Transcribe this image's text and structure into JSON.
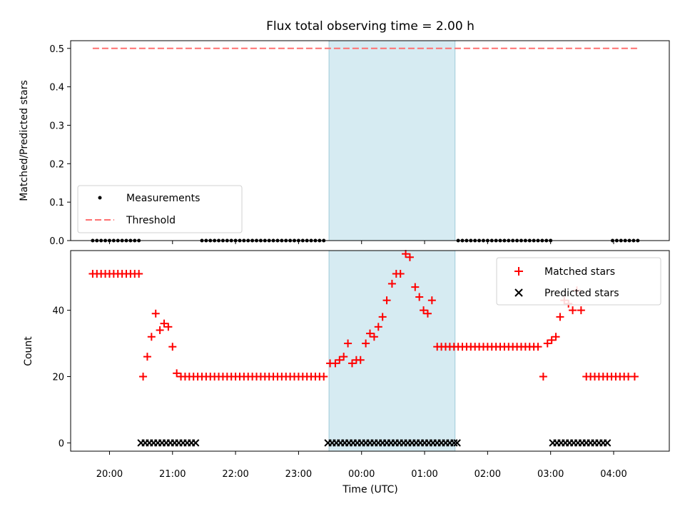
{
  "chart_data": {
    "type": "scatter",
    "title": "Flux total observing time = 2.00 h",
    "xlabel": "Time (UTC)",
    "x_ticks": [
      "20:00",
      "21:00",
      "22:00",
      "23:00",
      "00:00",
      "01:00",
      "02:00",
      "03:00",
      "04:00"
    ],
    "x_range": [
      "19:23",
      "04:53"
    ],
    "shaded_region": {
      "start": "23:29",
      "end": "01:29",
      "color": "#add8e6"
    },
    "top_panel": {
      "ylabel": "Matched/Predicted stars",
      "ylim": [
        0.0,
        0.52
      ],
      "yticks": [
        "0.0",
        "0.1",
        "0.2",
        "0.3",
        "0.4",
        "0.5"
      ],
      "threshold": {
        "name": "Threshold",
        "value": 0.5,
        "from": "19:44",
        "to": "04:24",
        "color": "#ff7070"
      },
      "measurements": {
        "name": "Measurements",
        "value": 0.0,
        "times": [
          "19:44",
          "19:48",
          "19:52",
          "19:56",
          "20:00",
          "20:04",
          "20:08",
          "20:12",
          "20:16",
          "20:20",
          "20:24",
          "20:28",
          "21:28",
          "21:32",
          "21:36",
          "21:40",
          "21:44",
          "21:48",
          "21:52",
          "21:56",
          "22:00",
          "22:04",
          "22:08",
          "22:12",
          "22:16",
          "22:20",
          "22:24",
          "22:28",
          "22:32",
          "22:36",
          "22:40",
          "22:44",
          "22:48",
          "22:52",
          "22:56",
          "23:00",
          "23:04",
          "23:08",
          "23:12",
          "23:16",
          "23:20",
          "23:24",
          "01:32",
          "01:36",
          "01:40",
          "01:44",
          "01:48",
          "01:52",
          "01:56",
          "02:00",
          "02:04",
          "02:08",
          "02:12",
          "02:16",
          "02:20",
          "02:24",
          "02:28",
          "02:32",
          "02:36",
          "02:40",
          "02:44",
          "02:48",
          "02:52",
          "02:56",
          "03:00",
          "03:59",
          "04:03",
          "04:07",
          "04:11",
          "04:15",
          "04:19",
          "04:23"
        ]
      },
      "legend": {
        "position": "lower-left",
        "entries": [
          "Measurements",
          "Threshold"
        ]
      }
    },
    "bottom_panel": {
      "ylabel": "Count",
      "ylim": [
        -2.5,
        58
      ],
      "yticks": [
        "0",
        "20",
        "40"
      ],
      "series": [
        {
          "name": "Matched stars",
          "marker": "+",
          "color": "#ff0000",
          "points": [
            [
              "19:44",
              51
            ],
            [
              "19:48",
              51
            ],
            [
              "19:52",
              51
            ],
            [
              "19:56",
              51
            ],
            [
              "20:00",
              51
            ],
            [
              "20:04",
              51
            ],
            [
              "20:08",
              51
            ],
            [
              "20:12",
              51
            ],
            [
              "20:16",
              51
            ],
            [
              "20:20",
              51
            ],
            [
              "20:24",
              51
            ],
            [
              "20:28",
              51
            ],
            [
              "20:32",
              20
            ],
            [
              "20:36",
              26
            ],
            [
              "20:40",
              32
            ],
            [
              "20:44",
              39
            ],
            [
              "20:48",
              34
            ],
            [
              "20:52",
              36
            ],
            [
              "20:56",
              35
            ],
            [
              "21:00",
              29
            ],
            [
              "21:04",
              21
            ],
            [
              "21:08",
              20
            ],
            [
              "21:12",
              20
            ],
            [
              "21:16",
              20
            ],
            [
              "21:20",
              20
            ],
            [
              "21:24",
              20
            ],
            [
              "21:28",
              20
            ],
            [
              "21:32",
              20
            ],
            [
              "21:36",
              20
            ],
            [
              "21:40",
              20
            ],
            [
              "21:44",
              20
            ],
            [
              "21:48",
              20
            ],
            [
              "21:52",
              20
            ],
            [
              "21:56",
              20
            ],
            [
              "22:00",
              20
            ],
            [
              "22:04",
              20
            ],
            [
              "22:08",
              20
            ],
            [
              "22:12",
              20
            ],
            [
              "22:16",
              20
            ],
            [
              "22:20",
              20
            ],
            [
              "22:24",
              20
            ],
            [
              "22:28",
              20
            ],
            [
              "22:32",
              20
            ],
            [
              "22:36",
              20
            ],
            [
              "22:40",
              20
            ],
            [
              "22:44",
              20
            ],
            [
              "22:48",
              20
            ],
            [
              "22:52",
              20
            ],
            [
              "22:56",
              20
            ],
            [
              "23:00",
              20
            ],
            [
              "23:04",
              20
            ],
            [
              "23:08",
              20
            ],
            [
              "23:12",
              20
            ],
            [
              "23:16",
              20
            ],
            [
              "23:20",
              20
            ],
            [
              "23:24",
              20
            ],
            [
              "23:30",
              24
            ],
            [
              "23:35",
              24
            ],
            [
              "23:39",
              25
            ],
            [
              "23:43",
              26
            ],
            [
              "23:47",
              30
            ],
            [
              "23:51",
              24
            ],
            [
              "23:55",
              25
            ],
            [
              "23:59",
              25
            ],
            [
              "00:04",
              30
            ],
            [
              "00:08",
              33
            ],
            [
              "00:12",
              32
            ],
            [
              "00:16",
              35
            ],
            [
              "00:20",
              38
            ],
            [
              "00:24",
              43
            ],
            [
              "00:29",
              48
            ],
            [
              "00:33",
              51
            ],
            [
              "00:37",
              51
            ],
            [
              "00:42",
              57
            ],
            [
              "00:46",
              56
            ],
            [
              "00:51",
              47
            ],
            [
              "00:55",
              44
            ],
            [
              "00:59",
              40
            ],
            [
              "01:03",
              39
            ],
            [
              "01:07",
              43
            ],
            [
              "01:12",
              29
            ],
            [
              "01:16",
              29
            ],
            [
              "01:20",
              29
            ],
            [
              "01:24",
              29
            ],
            [
              "01:28",
              29
            ],
            [
              "01:32",
              29
            ],
            [
              "01:36",
              29
            ],
            [
              "01:40",
              29
            ],
            [
              "01:44",
              29
            ],
            [
              "01:48",
              29
            ],
            [
              "01:52",
              29
            ],
            [
              "01:56",
              29
            ],
            [
              "02:00",
              29
            ],
            [
              "02:04",
              29
            ],
            [
              "02:08",
              29
            ],
            [
              "02:12",
              29
            ],
            [
              "02:16",
              29
            ],
            [
              "02:20",
              29
            ],
            [
              "02:24",
              29
            ],
            [
              "02:28",
              29
            ],
            [
              "02:32",
              29
            ],
            [
              "02:36",
              29
            ],
            [
              "02:40",
              29
            ],
            [
              "02:44",
              29
            ],
            [
              "02:48",
              29
            ],
            [
              "02:53",
              20
            ],
            [
              "02:57",
              30
            ],
            [
              "03:01",
              31
            ],
            [
              "03:05",
              32
            ],
            [
              "03:09",
              38
            ],
            [
              "03:13",
              43
            ],
            [
              "03:17",
              42
            ],
            [
              "03:21",
              40
            ],
            [
              "03:25",
              46
            ],
            [
              "03:29",
              40
            ],
            [
              "03:34",
              20
            ],
            [
              "03:38",
              20
            ],
            [
              "03:42",
              20
            ],
            [
              "03:46",
              20
            ],
            [
              "03:50",
              20
            ],
            [
              "03:54",
              20
            ],
            [
              "03:58",
              20
            ],
            [
              "04:02",
              20
            ],
            [
              "04:06",
              20
            ],
            [
              "04:10",
              20
            ],
            [
              "04:14",
              20
            ],
            [
              "04:20",
              20
            ]
          ]
        },
        {
          "name": "Predicted stars",
          "marker": "x",
          "color": "#000000",
          "value": 0,
          "times": [
            "20:30",
            "20:34",
            "20:38",
            "20:42",
            "20:46",
            "20:50",
            "20:54",
            "20:58",
            "21:02",
            "21:06",
            "21:10",
            "21:14",
            "21:18",
            "21:22",
            "23:28",
            "23:32",
            "23:36",
            "23:40",
            "23:44",
            "23:48",
            "23:52",
            "23:56",
            "00:00",
            "00:04",
            "00:08",
            "00:12",
            "00:16",
            "00:20",
            "00:24",
            "00:28",
            "00:32",
            "00:36",
            "00:40",
            "00:44",
            "00:48",
            "00:52",
            "00:56",
            "01:00",
            "01:04",
            "01:08",
            "01:12",
            "01:16",
            "01:20",
            "01:24",
            "01:28",
            "01:31",
            "03:02",
            "03:06",
            "03:10",
            "03:14",
            "03:18",
            "03:22",
            "03:26",
            "03:30",
            "03:34",
            "03:38",
            "03:42",
            "03:46",
            "03:50",
            "03:54"
          ]
        }
      ],
      "legend": {
        "position": "upper-right",
        "entries": [
          "Matched stars",
          "Predicted stars"
        ]
      }
    }
  }
}
